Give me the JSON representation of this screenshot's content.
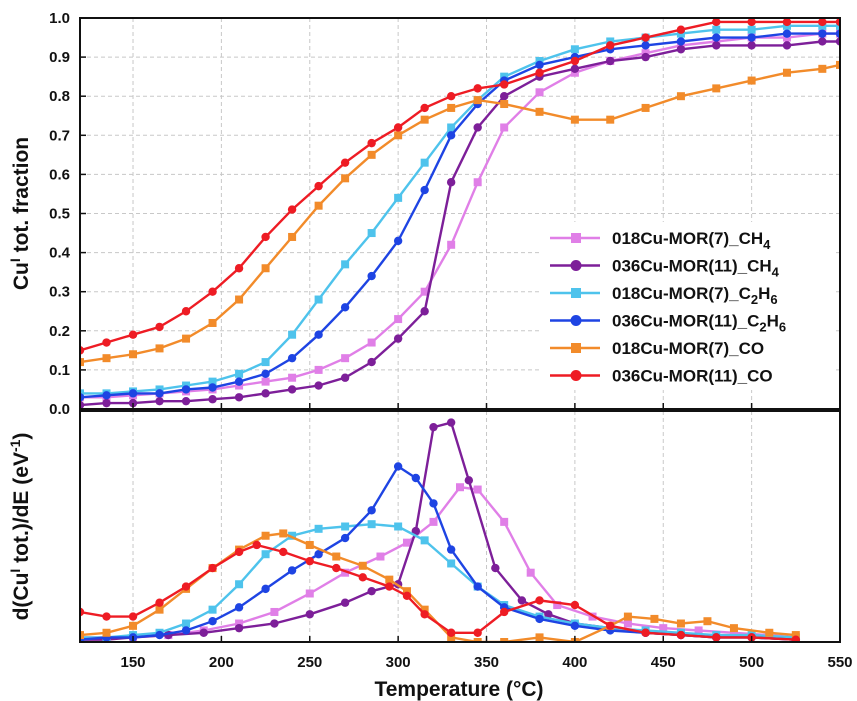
{
  "chart_data": [
    {
      "type": "line",
      "xlabel": "Temperature (°C)",
      "ylabel": [
        "Cu",
        "I",
        " tot. fraction"
      ],
      "xlim": [
        120,
        550
      ],
      "ylim": [
        0,
        1.0
      ],
      "x_ticks": [
        "150",
        "200",
        "250",
        "300",
        "350",
        "400",
        "450",
        "500",
        "550"
      ],
      "y_ticks": [
        "0.0",
        "0.1",
        "0.2",
        "0.3",
        "0.4",
        "0.5",
        "0.6",
        "0.7",
        "0.8",
        "0.9",
        "1.0"
      ],
      "grid": true,
      "legend_position": "right",
      "series": [
        {
          "name": [
            "018Cu-MOR(7)_CH",
            "4",
            ""
          ],
          "color": "#e07fe7",
          "marker": "square",
          "x": [
            120,
            135,
            150,
            165,
            180,
            195,
            210,
            225,
            240,
            255,
            270,
            285,
            300,
            315,
            330,
            345,
            360,
            380,
            400,
            420,
            440,
            460,
            480,
            500,
            520,
            540,
            550
          ],
          "y": [
            0.03,
            0.03,
            0.035,
            0.04,
            0.045,
            0.05,
            0.06,
            0.07,
            0.08,
            0.1,
            0.13,
            0.17,
            0.23,
            0.3,
            0.42,
            0.58,
            0.72,
            0.81,
            0.86,
            0.89,
            0.91,
            0.93,
            0.94,
            0.95,
            0.95,
            0.96,
            0.96
          ]
        },
        {
          "name": [
            "036Cu-MOR(11)_CH",
            "4",
            ""
          ],
          "color": "#7d1f99",
          "marker": "circle",
          "x": [
            120,
            135,
            150,
            165,
            180,
            195,
            210,
            225,
            240,
            255,
            270,
            285,
            300,
            315,
            330,
            345,
            360,
            380,
            400,
            420,
            440,
            460,
            480,
            500,
            520,
            540,
            550
          ],
          "y": [
            0.01,
            0.015,
            0.015,
            0.02,
            0.02,
            0.025,
            0.03,
            0.04,
            0.05,
            0.06,
            0.08,
            0.12,
            0.18,
            0.25,
            0.58,
            0.72,
            0.8,
            0.85,
            0.87,
            0.89,
            0.9,
            0.92,
            0.93,
            0.93,
            0.93,
            0.94,
            0.94
          ]
        },
        {
          "name": [
            "018Cu-MOR(7)_C",
            "2",
            "H",
            "6",
            ""
          ],
          "color": "#4ec3ec",
          "marker": "square",
          "x": [
            120,
            135,
            150,
            165,
            180,
            195,
            210,
            225,
            240,
            255,
            270,
            285,
            300,
            315,
            330,
            345,
            360,
            380,
            400,
            420,
            440,
            460,
            480,
            500,
            520,
            540,
            550
          ],
          "y": [
            0.04,
            0.04,
            0.045,
            0.05,
            0.06,
            0.07,
            0.09,
            0.12,
            0.19,
            0.28,
            0.37,
            0.45,
            0.54,
            0.63,
            0.72,
            0.79,
            0.85,
            0.89,
            0.92,
            0.94,
            0.95,
            0.96,
            0.97,
            0.97,
            0.98,
            0.98,
            0.98
          ]
        },
        {
          "name": [
            "036Cu-MOR(11)_C",
            "2",
            "H",
            "6",
            ""
          ],
          "color": "#1e44e3",
          "marker": "circle",
          "x": [
            120,
            135,
            150,
            165,
            180,
            195,
            210,
            225,
            240,
            255,
            270,
            285,
            300,
            315,
            330,
            345,
            360,
            380,
            400,
            420,
            440,
            460,
            480,
            500,
            520,
            540,
            550
          ],
          "y": [
            0.03,
            0.035,
            0.04,
            0.04,
            0.05,
            0.055,
            0.07,
            0.09,
            0.13,
            0.19,
            0.26,
            0.34,
            0.43,
            0.56,
            0.7,
            0.78,
            0.84,
            0.88,
            0.9,
            0.92,
            0.93,
            0.94,
            0.95,
            0.95,
            0.96,
            0.96,
            0.96
          ]
        },
        {
          "name": [
            "018Cu-MOR(7)_CO"
          ],
          "color": "#f28b2a",
          "marker": "square",
          "x": [
            120,
            135,
            150,
            165,
            180,
            195,
            210,
            225,
            240,
            255,
            270,
            285,
            300,
            315,
            330,
            345,
            360,
            380,
            400,
            420,
            440,
            460,
            480,
            500,
            520,
            540,
            550
          ],
          "y": [
            0.12,
            0.13,
            0.14,
            0.155,
            0.18,
            0.22,
            0.28,
            0.36,
            0.44,
            0.52,
            0.59,
            0.65,
            0.7,
            0.74,
            0.77,
            0.79,
            0.78,
            0.76,
            0.74,
            0.74,
            0.77,
            0.8,
            0.82,
            0.84,
            0.86,
            0.87,
            0.88
          ]
        },
        {
          "name": [
            "036Cu-MOR(11)_CO"
          ],
          "color": "#ee1c24",
          "marker": "circle",
          "x": [
            120,
            135,
            150,
            165,
            180,
            195,
            210,
            225,
            240,
            255,
            270,
            285,
            300,
            315,
            330,
            345,
            360,
            380,
            400,
            420,
            440,
            460,
            480,
            500,
            520,
            540,
            550
          ],
          "y": [
            0.15,
            0.17,
            0.19,
            0.21,
            0.25,
            0.3,
            0.36,
            0.44,
            0.51,
            0.57,
            0.63,
            0.68,
            0.72,
            0.77,
            0.8,
            0.82,
            0.83,
            0.86,
            0.89,
            0.93,
            0.95,
            0.97,
            0.99,
            0.99,
            0.99,
            0.99,
            0.99
          ]
        }
      ]
    },
    {
      "type": "line",
      "xlabel": "Temperature (°C)",
      "ylabel": [
        "d(Cu",
        "I",
        " tot.)/dE (eV",
        "-1",
        ")"
      ],
      "xlim": [
        120,
        550
      ],
      "ylim": [
        0,
        1.0
      ],
      "x_ticks": [
        "150",
        "200",
        "250",
        "300",
        "350",
        "400",
        "450",
        "500",
        "550"
      ],
      "grid": true,
      "y_tick_labels_shown": false,
      "series": [
        {
          "name": [
            "018Cu-MOR(7)_CH",
            "4",
            ""
          ],
          "color": "#e07fe7",
          "marker": "square",
          "x": [
            120,
            135,
            150,
            170,
            190,
            210,
            230,
            250,
            270,
            290,
            305,
            320,
            335,
            345,
            360,
            375,
            390,
            410,
            430,
            450,
            470,
            490,
            510,
            525
          ],
          "y": [
            0.02,
            0.02,
            0.02,
            0.03,
            0.05,
            0.08,
            0.13,
            0.21,
            0.3,
            0.37,
            0.43,
            0.52,
            0.67,
            0.66,
            0.52,
            0.3,
            0.16,
            0.11,
            0.08,
            0.06,
            0.05,
            0.04,
            0.03,
            0.02
          ]
        },
        {
          "name": [
            "036Cu-MOR(11)_CH",
            "4",
            ""
          ],
          "color": "#7d1f99",
          "marker": "circle",
          "x": [
            120,
            135,
            150,
            170,
            190,
            210,
            230,
            250,
            270,
            285,
            300,
            310,
            320,
            330,
            340,
            355,
            370,
            385,
            400,
            420,
            440,
            460,
            480,
            500,
            525
          ],
          "y": [
            0.01,
            0.01,
            0.02,
            0.03,
            0.04,
            0.06,
            0.08,
            0.12,
            0.17,
            0.22,
            0.25,
            0.48,
            0.93,
            0.95,
            0.7,
            0.32,
            0.18,
            0.12,
            0.08,
            0.06,
            0.04,
            0.03,
            0.02,
            0.02,
            0.01
          ]
        },
        {
          "name": [
            "018Cu-MOR(7)_C",
            "2",
            "H",
            "6",
            ""
          ],
          "color": "#4ec3ec",
          "marker": "square",
          "x": [
            120,
            135,
            150,
            165,
            180,
            195,
            210,
            225,
            240,
            255,
            270,
            285,
            300,
            315,
            330,
            345,
            360,
            380,
            400,
            420,
            440,
            460,
            480,
            500,
            525
          ],
          "y": [
            0.02,
            0.02,
            0.03,
            0.04,
            0.08,
            0.14,
            0.25,
            0.38,
            0.46,
            0.49,
            0.5,
            0.51,
            0.5,
            0.44,
            0.34,
            0.24,
            0.16,
            0.11,
            0.08,
            0.06,
            0.05,
            0.04,
            0.03,
            0.03,
            0.02
          ]
        },
        {
          "name": [
            "036Cu-MOR(11)_C",
            "2",
            "H",
            "6",
            ""
          ],
          "color": "#1e44e3",
          "marker": "circle",
          "x": [
            120,
            135,
            150,
            165,
            180,
            195,
            210,
            225,
            240,
            255,
            270,
            285,
            300,
            310,
            320,
            330,
            345,
            360,
            380,
            400,
            420,
            440,
            460,
            480,
            500,
            525
          ],
          "y": [
            0.01,
            0.02,
            0.02,
            0.03,
            0.05,
            0.09,
            0.15,
            0.23,
            0.31,
            0.38,
            0.45,
            0.57,
            0.76,
            0.71,
            0.6,
            0.4,
            0.24,
            0.15,
            0.1,
            0.07,
            0.05,
            0.04,
            0.03,
            0.02,
            0.02,
            0.01
          ]
        },
        {
          "name": [
            "018Cu-MOR(7)_CO"
          ],
          "color": "#f28b2a",
          "marker": "square",
          "x": [
            120,
            135,
            150,
            165,
            180,
            195,
            210,
            225,
            235,
            250,
            265,
            280,
            295,
            305,
            315,
            330,
            345,
            360,
            380,
            400,
            420,
            430,
            445,
            460,
            475,
            490,
            510,
            525
          ],
          "y": [
            0.03,
            0.04,
            0.07,
            0.14,
            0.23,
            0.32,
            0.4,
            0.46,
            0.47,
            0.42,
            0.37,
            0.33,
            0.27,
            0.22,
            0.14,
            0.02,
            0.0,
            0.0,
            0.02,
            0.0,
            0.07,
            0.11,
            0.1,
            0.08,
            0.09,
            0.06,
            0.04,
            0.03
          ]
        },
        {
          "name": [
            "036Cu-MOR(11)_CO"
          ],
          "color": "#ee1c24",
          "marker": "circle",
          "x": [
            120,
            135,
            150,
            165,
            180,
            195,
            210,
            220,
            235,
            250,
            265,
            280,
            295,
            305,
            315,
            330,
            345,
            360,
            380,
            400,
            420,
            440,
            460,
            480,
            500,
            525
          ],
          "y": [
            0.13,
            0.11,
            0.11,
            0.17,
            0.24,
            0.32,
            0.39,
            0.42,
            0.39,
            0.35,
            0.32,
            0.28,
            0.24,
            0.2,
            0.12,
            0.04,
            0.04,
            0.13,
            0.18,
            0.16,
            0.07,
            0.04,
            0.03,
            0.02,
            0.02,
            0.01
          ]
        }
      ]
    }
  ]
}
